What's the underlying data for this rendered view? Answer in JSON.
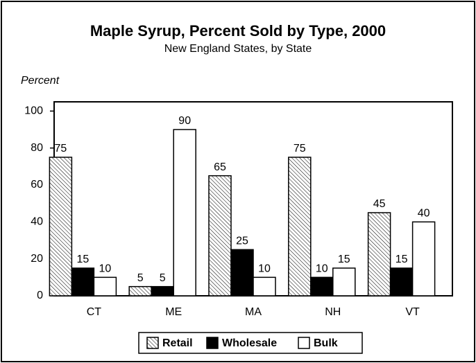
{
  "chart_data": {
    "type": "bar",
    "title": "Maple Syrup, Percent Sold by Type, 2000",
    "subtitle": "New England States, by State",
    "y_label": "Percent",
    "categories": [
      "CT",
      "ME",
      "MA",
      "NH",
      "VT"
    ],
    "series": [
      {
        "name": "Retail",
        "color": "#ffffff",
        "hatch": true,
        "values": [
          75,
          5,
          65,
          75,
          45
        ]
      },
      {
        "name": "Wholesale",
        "color": "#000000",
        "values": [
          15,
          5,
          25,
          10,
          15
        ]
      },
      {
        "name": "Bulk",
        "color": "#ffffff",
        "values": [
          10,
          90,
          10,
          15,
          40
        ]
      }
    ],
    "ylim": [
      0,
      105
    ],
    "yticks": [
      0,
      20,
      40,
      60,
      80,
      100
    ],
    "legend": "bottom"
  }
}
